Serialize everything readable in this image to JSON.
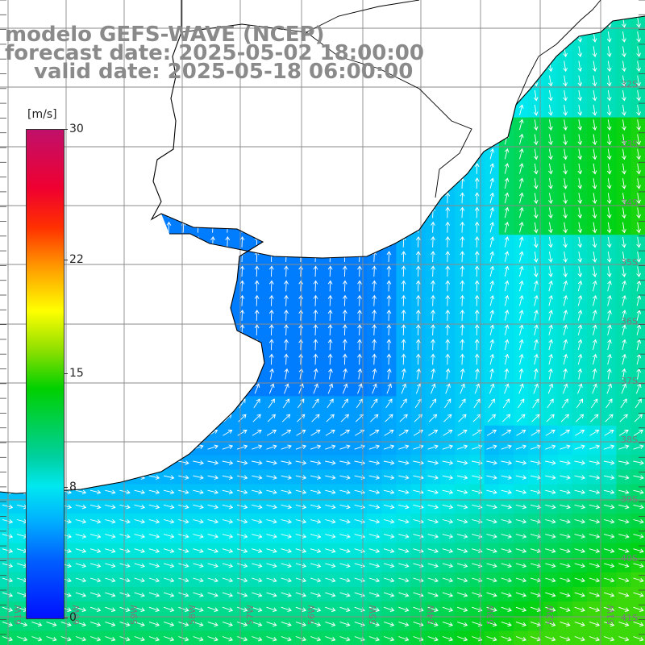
{
  "title": {
    "line1": "modelo GEFS-WAVE (NCEP)",
    "line2": "forecast date: 2025-05-02 18:00:00",
    "line3": "valid date: 2025-05-18 06:00:00"
  },
  "colorbar": {
    "unit": "[m/s]",
    "min": 0,
    "max": 30,
    "ticks": [
      "30",
      "22",
      "15",
      "8",
      "0"
    ],
    "tick_values": [
      30,
      22,
      15,
      8,
      0
    ],
    "colors": [
      "#0010ff",
      "#0060ff",
      "#00b0ff",
      "#00e8f0",
      "#00d0a0",
      "#00d000",
      "#90e000",
      "#ffff00",
      "#ff9900",
      "#ff3000",
      "#f00030",
      "#c0106a"
    ]
  },
  "map": {
    "variable": "wind speed and direction",
    "land_color": "#ffffff",
    "grid_color": "#8a8a8a",
    "arrow_color": "#ffffff",
    "lat_labels": [
      "32S",
      "33S",
      "34S",
      "35S",
      "36S",
      "37S",
      "38S",
      "39S",
      "40S",
      "41S"
    ],
    "lon_labels": [
      "61W",
      "60W",
      "59W",
      "58W",
      "57W",
      "56W",
      "55W",
      "54W",
      "53W",
      "52W",
      "51W"
    ]
  }
}
